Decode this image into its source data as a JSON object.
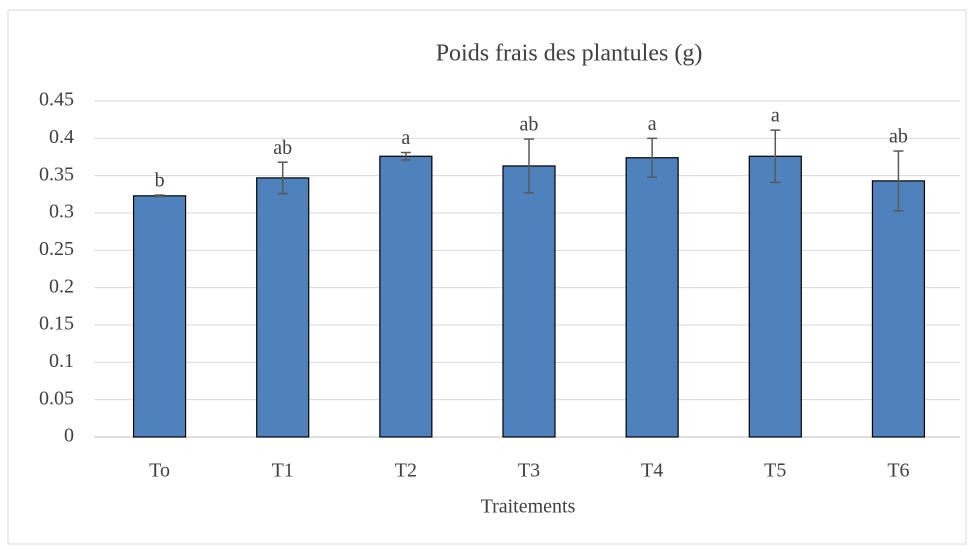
{
  "chart_data": {
    "type": "bar",
    "title": "Poids frais des plantules (g)",
    "x_label": "Traitements",
    "categories": [
      "To",
      "T1",
      "T2",
      "T3",
      "T4",
      "T5",
      "T6"
    ],
    "values": [
      0.323,
      0.347,
      0.376,
      0.363,
      0.374,
      0.376,
      0.343
    ],
    "errors": [
      0.001,
      0.021,
      0.005,
      0.036,
      0.026,
      0.035,
      0.04
    ],
    "annotations": [
      "b",
      "ab",
      "a",
      "ab",
      "a",
      "a",
      "ab"
    ],
    "color": "#4f81bd",
    "ylim": [
      0,
      0.45
    ],
    "yticks": [
      0,
      0.05,
      0.1,
      0.15,
      0.2,
      0.25,
      0.3,
      0.35,
      0.4,
      0.45
    ],
    "grid": true
  }
}
